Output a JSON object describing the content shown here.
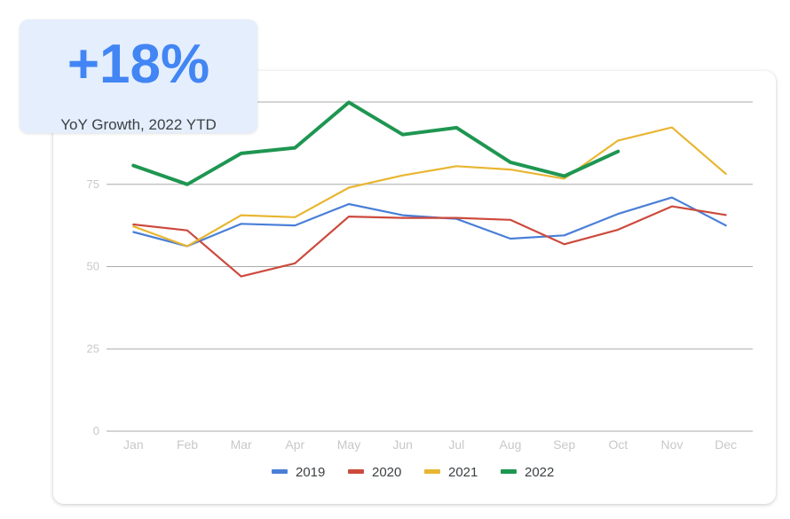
{
  "kpi": {
    "value": "+18%",
    "label": "YoY Growth, 2022 YTD"
  },
  "colors": {
    "s2019": "#4a7fd8",
    "s2020": "#cc4a3d",
    "s2021": "#e8b631",
    "s2022": "#1e9651",
    "grid": "#aaaaaa",
    "tick": "#c8c8c8",
    "kpi_bg": "#e4eefd",
    "kpi_text": "#4285f4"
  },
  "chart_data": {
    "type": "line",
    "categories": [
      "Jan",
      "Feb",
      "Mar",
      "Apr",
      "May",
      "Jun",
      "Jul",
      "Aug",
      "Sep",
      "Oct",
      "Nov",
      "Dec"
    ],
    "yticks": [
      0,
      25,
      50,
      75
    ],
    "ylim": [
      0,
      100
    ],
    "grid": true,
    "legend": "bottom",
    "series": [
      {
        "name": "2019",
        "values": [
          60.5,
          56.2,
          63.0,
          62.5,
          69.0,
          65.6,
          64.5,
          58.5,
          59.5,
          66.0,
          71.0,
          62.5
        ]
      },
      {
        "name": "2020",
        "values": [
          62.8,
          61.0,
          47.0,
          51.0,
          65.2,
          64.8,
          64.8,
          64.2,
          56.8,
          61.2,
          68.3,
          65.7
        ]
      },
      {
        "name": "2021",
        "values": [
          62.2,
          56.2,
          65.6,
          65.0,
          74.0,
          77.7,
          80.5,
          79.5,
          76.7,
          88.3,
          92.3,
          78.2
        ]
      },
      {
        "name": "2022",
        "values": [
          80.7,
          75.0,
          84.4,
          86.1,
          99.9,
          90.1,
          92.2,
          81.7,
          77.5,
          85.0,
          null,
          null
        ]
      }
    ]
  }
}
